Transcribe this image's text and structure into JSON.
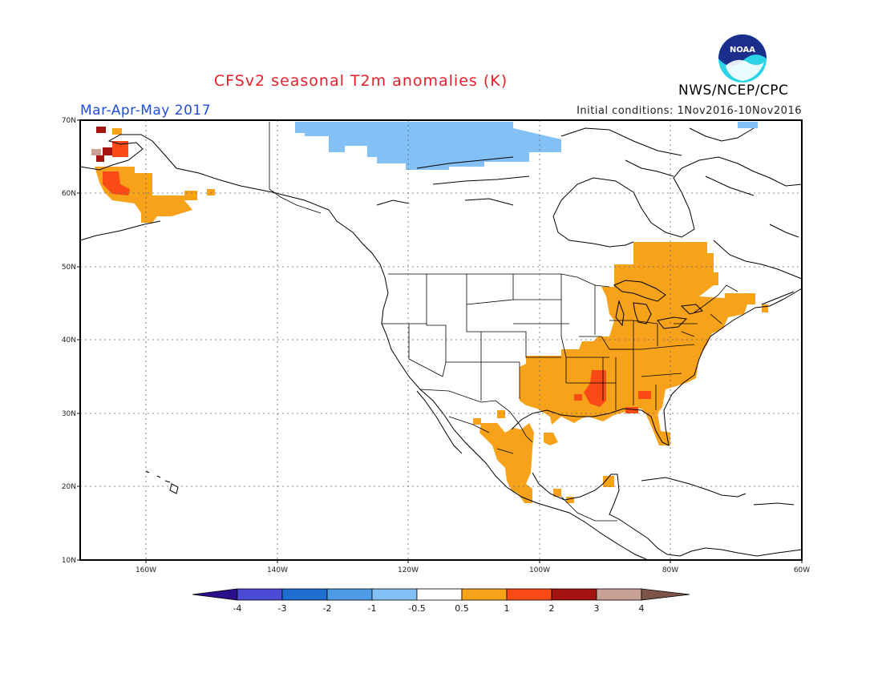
{
  "header": {
    "title": "CFSv2 seasonal T2m anomalies (K)",
    "org": "NWS/NCEP/CPC",
    "season": "Mar-Apr-May 2017",
    "initial": "Initial conditions: 1Nov2016-10Nov2016",
    "logo_text": "NOAA"
  },
  "axes": {
    "lat_labels": [
      "70N",
      "60N",
      "50N",
      "40N",
      "30N",
      "20N",
      "10N"
    ],
    "lon_labels": [
      "160W",
      "140W",
      "120W",
      "100W",
      "80W",
      "60W"
    ]
  },
  "colorbar": {
    "labels": [
      "-4",
      "-3",
      "-2",
      "-1",
      "-0.5",
      "0.5",
      "1",
      "2",
      "3",
      "4"
    ],
    "colors": [
      "#2b0f8a",
      "#4b4bd6",
      "#1f6fd1",
      "#4e9be6",
      "#82c0f5",
      "#ffffff",
      "#f7a21b",
      "#fa4a16",
      "#a3130f",
      "#c8a196",
      "#7c5548"
    ]
  },
  "anomaly_colors": {
    "cool": "#82c0f5",
    "warm": "#f7a21b",
    "hot": "#fa4a16",
    "very_hot": "#a3130f",
    "extreme": "#c8a196"
  }
}
